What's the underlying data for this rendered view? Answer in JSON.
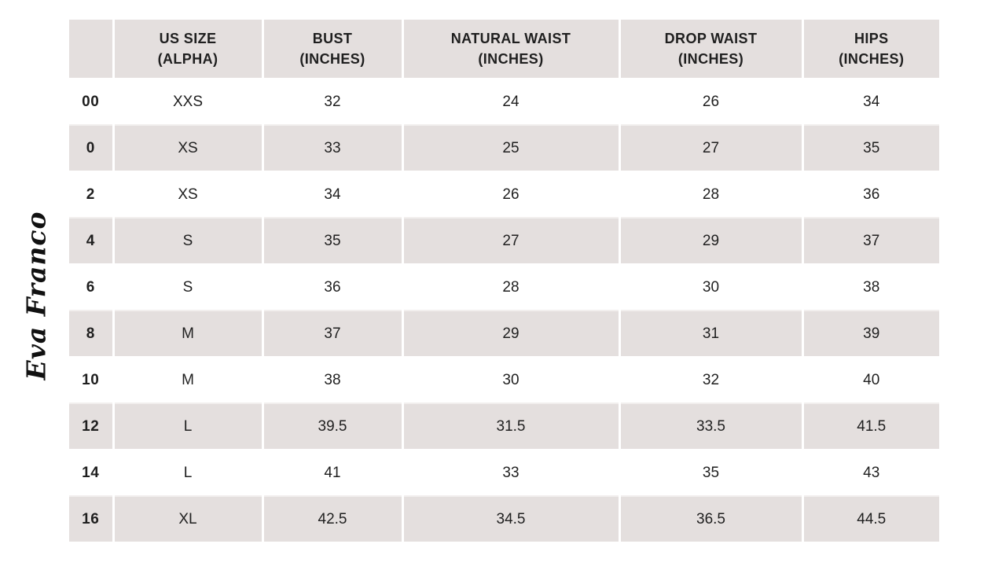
{
  "brand": {
    "logo_text": "Eva Franco"
  },
  "colors": {
    "stripe": "#e4dfde",
    "text": "#1f1f1f",
    "background": "#ffffff"
  },
  "chart_data": {
    "type": "table",
    "columns": [
      "",
      "US SIZE (ALPHA)",
      "BUST (INCHES)",
      "NATURAL WAIST (INCHES)",
      "DROP WAIST (INCHES)",
      "HIPS (INCHES)"
    ],
    "header_lines": [
      "",
      "US SIZE\n(ALPHA)",
      "BUST\n(INCHES)",
      "NATURAL WAIST\n(INCHES)",
      "DROP WAIST\n(INCHES)",
      "HIPS\n(INCHES)"
    ],
    "rows": [
      [
        "00",
        "XXS",
        "32",
        "24",
        "26",
        "34"
      ],
      [
        "0",
        "XS",
        "33",
        "25",
        "27",
        "35"
      ],
      [
        "2",
        "XS",
        "34",
        "26",
        "28",
        "36"
      ],
      [
        "4",
        "S",
        "35",
        "27",
        "29",
        "37"
      ],
      [
        "6",
        "S",
        "36",
        "28",
        "30",
        "38"
      ],
      [
        "8",
        "M",
        "37",
        "29",
        "31",
        "39"
      ],
      [
        "10",
        "M",
        "38",
        "30",
        "32",
        "40"
      ],
      [
        "12",
        "L",
        "39.5",
        "31.5",
        "33.5",
        "41.5"
      ],
      [
        "14",
        "L",
        "41",
        "33",
        "35",
        "43"
      ],
      [
        "16",
        "XL",
        "42.5",
        "34.5",
        "36.5",
        "44.5"
      ]
    ]
  }
}
